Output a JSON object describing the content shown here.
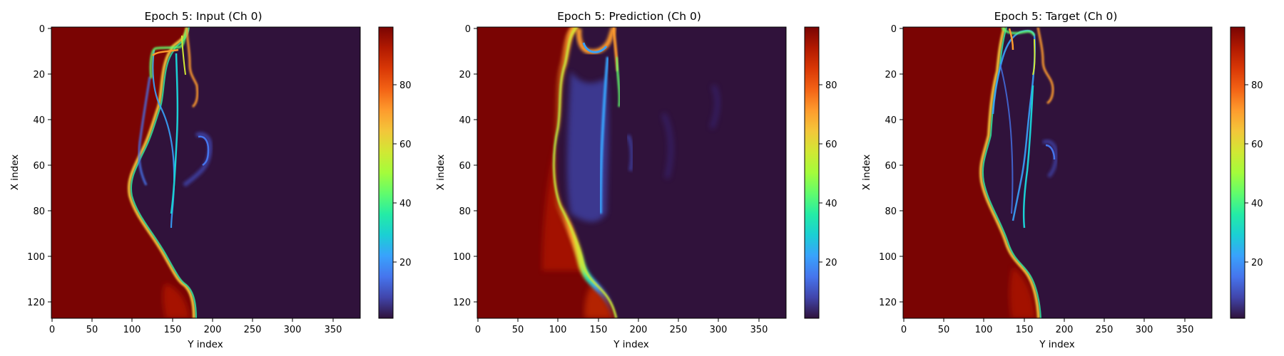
{
  "colorbar": {
    "stops": [
      "#30123b",
      "#4145ab",
      "#4675ed",
      "#39a2fc",
      "#1bcfd4",
      "#24eca6",
      "#61fc6c",
      "#a4fc3b",
      "#d1e834",
      "#f3c63a",
      "#fe9b2d",
      "#f36315",
      "#d93806",
      "#b11901",
      "#7a0403"
    ],
    "range": [
      0,
      100
    ],
    "ticks": [
      "20",
      "40",
      "60",
      "80"
    ]
  },
  "chart_data": [
    {
      "type": "heatmap",
      "title": "Epoch 5: Input (Ch 0)",
      "xlabel": "Y index",
      "ylabel": "X index",
      "x_ticks": [
        "0",
        "50",
        "100",
        "150",
        "200",
        "250",
        "300",
        "350"
      ],
      "y_ticks": [
        "0",
        "20",
        "40",
        "60",
        "80",
        "100",
        "120"
      ],
      "xlim": [
        0,
        383
      ],
      "ylim": [
        127,
        0
      ],
      "value_range": [
        0,
        100
      ],
      "colorbar_ticks": [
        "20",
        "40",
        "60",
        "80"
      ]
    },
    {
      "type": "heatmap",
      "title": "Epoch 5: Prediction (Ch 0)",
      "xlabel": "Y index",
      "ylabel": "X index",
      "x_ticks": [
        "0",
        "50",
        "100",
        "150",
        "200",
        "250",
        "300",
        "350"
      ],
      "y_ticks": [
        "0",
        "20",
        "40",
        "60",
        "80",
        "100",
        "120"
      ],
      "xlim": [
        0,
        383
      ],
      "ylim": [
        127,
        0
      ],
      "value_range": [
        0,
        100
      ],
      "colorbar_ticks": [
        "20",
        "40",
        "60",
        "80"
      ]
    },
    {
      "type": "heatmap",
      "title": "Epoch 5: Target (Ch 0)",
      "xlabel": "Y index",
      "ylabel": "X index",
      "x_ticks": [
        "0",
        "50",
        "100",
        "150",
        "200",
        "250",
        "300",
        "350"
      ],
      "y_ticks": [
        "0",
        "20",
        "40",
        "60",
        "80",
        "100",
        "120"
      ],
      "xlim": [
        0,
        383
      ],
      "ylim": [
        127,
        0
      ],
      "value_range": [
        0,
        100
      ],
      "colorbar_ticks": [
        "20",
        "40",
        "60",
        "80"
      ]
    }
  ]
}
